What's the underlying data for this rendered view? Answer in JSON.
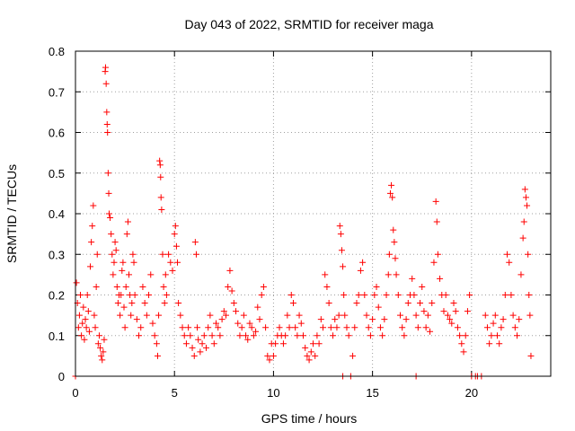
{
  "chart_data": {
    "type": "scatter",
    "title": "Day 043 of 2022, SRMTID for receiver maga",
    "xlabel": "GPS time / hours",
    "ylabel": "SRMTID / TECUs",
    "xlim": [
      0,
      24
    ],
    "ylim": [
      0,
      0.8
    ],
    "xticks": [
      0,
      5,
      10,
      15,
      20
    ],
    "yticks": [
      0,
      0.1,
      0.2,
      0.3,
      0.4,
      0.5,
      0.6,
      0.7,
      0.8
    ],
    "xtick_labels": [
      "0",
      "5",
      "10",
      "15",
      "20"
    ],
    "ytick_labels": [
      "0",
      "0.1",
      "0.2",
      "0.3",
      "0.4",
      "0.5",
      "0.6",
      "0.7",
      "0.8"
    ],
    "grid": true,
    "marker": "+",
    "color": "#ff0000",
    "series": [
      {
        "name": "SRMTID",
        "points": [
          [
            0.0,
            0.0
          ],
          [
            0.05,
            0.23
          ],
          [
            0.1,
            0.18
          ],
          [
            0.15,
            0.12
          ],
          [
            0.2,
            0.15
          ],
          [
            0.25,
            0.2
          ],
          [
            0.3,
            0.1
          ],
          [
            0.35,
            0.13
          ],
          [
            0.4,
            0.17
          ],
          [
            0.45,
            0.09
          ],
          [
            0.5,
            0.14
          ],
          [
            0.55,
            0.12
          ],
          [
            0.6,
            0.2
          ],
          [
            0.65,
            0.16
          ],
          [
            0.7,
            0.11
          ],
          [
            0.75,
            0.27
          ],
          [
            0.8,
            0.33
          ],
          [
            0.85,
            0.37
          ],
          [
            0.9,
            0.42
          ],
          [
            0.95,
            0.15
          ],
          [
            1.0,
            0.12
          ],
          [
            1.05,
            0.22
          ],
          [
            1.1,
            0.3
          ],
          [
            1.15,
            0.08
          ],
          [
            1.2,
            0.1
          ],
          [
            1.25,
            0.07
          ],
          [
            1.3,
            0.05
          ],
          [
            1.35,
            0.04
          ],
          [
            1.4,
            0.06
          ],
          [
            1.45,
            0.09
          ],
          [
            1.5,
            0.75
          ],
          [
            1.52,
            0.76
          ],
          [
            1.55,
            0.72
          ],
          [
            1.58,
            0.65
          ],
          [
            1.6,
            0.62
          ],
          [
            1.62,
            0.6
          ],
          [
            1.65,
            0.5
          ],
          [
            1.68,
            0.45
          ],
          [
            1.7,
            0.4
          ],
          [
            1.75,
            0.39
          ],
          [
            1.8,
            0.35
          ],
          [
            1.85,
            0.3
          ],
          [
            1.9,
            0.25
          ],
          [
            1.95,
            0.28
          ],
          [
            2.0,
            0.33
          ],
          [
            2.05,
            0.31
          ],
          [
            2.1,
            0.22
          ],
          [
            2.15,
            0.18
          ],
          [
            2.2,
            0.2
          ],
          [
            2.25,
            0.15
          ],
          [
            2.3,
            0.2
          ],
          [
            2.35,
            0.26
          ],
          [
            2.4,
            0.28
          ],
          [
            2.45,
            0.17
          ],
          [
            2.5,
            0.12
          ],
          [
            2.55,
            0.22
          ],
          [
            2.6,
            0.35
          ],
          [
            2.65,
            0.38
          ],
          [
            2.7,
            0.25
          ],
          [
            2.75,
            0.2
          ],
          [
            2.8,
            0.15
          ],
          [
            2.85,
            0.18
          ],
          [
            2.9,
            0.3
          ],
          [
            2.95,
            0.28
          ],
          [
            3.0,
            0.2
          ],
          [
            3.1,
            0.14
          ],
          [
            3.2,
            0.1
          ],
          [
            3.3,
            0.12
          ],
          [
            3.4,
            0.22
          ],
          [
            3.5,
            0.18
          ],
          [
            3.6,
            0.15
          ],
          [
            3.7,
            0.2
          ],
          [
            3.8,
            0.25
          ],
          [
            3.9,
            0.13
          ],
          [
            4.0,
            0.1
          ],
          [
            4.1,
            0.08
          ],
          [
            4.15,
            0.05
          ],
          [
            4.2,
            0.15
          ],
          [
            4.25,
            0.53
          ],
          [
            4.28,
            0.52
          ],
          [
            4.3,
            0.49
          ],
          [
            4.32,
            0.44
          ],
          [
            4.35,
            0.41
          ],
          [
            4.4,
            0.3
          ],
          [
            4.45,
            0.22
          ],
          [
            4.5,
            0.18
          ],
          [
            4.55,
            0.25
          ],
          [
            4.6,
            0.2
          ],
          [
            4.7,
            0.3
          ],
          [
            4.8,
            0.28
          ],
          [
            4.9,
            0.26
          ],
          [
            5.0,
            0.35
          ],
          [
            5.05,
            0.37
          ],
          [
            5.1,
            0.32
          ],
          [
            5.15,
            0.28
          ],
          [
            5.2,
            0.18
          ],
          [
            5.3,
            0.15
          ],
          [
            5.4,
            0.12
          ],
          [
            5.5,
            0.1
          ],
          [
            5.6,
            0.08
          ],
          [
            5.7,
            0.12
          ],
          [
            5.8,
            0.1
          ],
          [
            5.9,
            0.07
          ],
          [
            6.0,
            0.05
          ],
          [
            6.05,
            0.33
          ],
          [
            6.1,
            0.3
          ],
          [
            6.15,
            0.12
          ],
          [
            6.2,
            0.09
          ],
          [
            6.3,
            0.06
          ],
          [
            6.4,
            0.08
          ],
          [
            6.5,
            0.1
          ],
          [
            6.6,
            0.07
          ],
          [
            6.7,
            0.12
          ],
          [
            6.8,
            0.15
          ],
          [
            6.9,
            0.1
          ],
          [
            7.0,
            0.08
          ],
          [
            7.1,
            0.13
          ],
          [
            7.2,
            0.12
          ],
          [
            7.3,
            0.1
          ],
          [
            7.4,
            0.14
          ],
          [
            7.5,
            0.16
          ],
          [
            7.6,
            0.15
          ],
          [
            7.7,
            0.22
          ],
          [
            7.8,
            0.26
          ],
          [
            7.9,
            0.21
          ],
          [
            8.0,
            0.18
          ],
          [
            8.1,
            0.16
          ],
          [
            8.2,
            0.13
          ],
          [
            8.3,
            0.1
          ],
          [
            8.4,
            0.12
          ],
          [
            8.5,
            0.15
          ],
          [
            8.6,
            0.1
          ],
          [
            8.7,
            0.09
          ],
          [
            8.8,
            0.13
          ],
          [
            8.9,
            0.12
          ],
          [
            9.0,
            0.1
          ],
          [
            9.1,
            0.11
          ],
          [
            9.2,
            0.17
          ],
          [
            9.3,
            0.14
          ],
          [
            9.4,
            0.2
          ],
          [
            9.5,
            0.22
          ],
          [
            9.6,
            0.12
          ],
          [
            9.7,
            0.05
          ],
          [
            9.8,
            0.04
          ],
          [
            9.9,
            0.08
          ],
          [
            10.0,
            0.05
          ],
          [
            10.1,
            0.08
          ],
          [
            10.2,
            0.1
          ],
          [
            10.3,
            0.12
          ],
          [
            10.4,
            0.1
          ],
          [
            10.5,
            0.08
          ],
          [
            10.6,
            0.1
          ],
          [
            10.7,
            0.15
          ],
          [
            10.8,
            0.12
          ],
          [
            10.9,
            0.2
          ],
          [
            11.0,
            0.18
          ],
          [
            11.1,
            0.12
          ],
          [
            11.2,
            0.1
          ],
          [
            11.3,
            0.15
          ],
          [
            11.4,
            0.13
          ],
          [
            11.5,
            0.1
          ],
          [
            11.6,
            0.07
          ],
          [
            11.7,
            0.05
          ],
          [
            11.8,
            0.04
          ],
          [
            11.9,
            0.06
          ],
          [
            12.0,
            0.08
          ],
          [
            12.1,
            0.05
          ],
          [
            12.2,
            0.1
          ],
          [
            12.3,
            0.08
          ],
          [
            12.4,
            0.14
          ],
          [
            12.5,
            0.12
          ],
          [
            12.6,
            0.25
          ],
          [
            12.7,
            0.22
          ],
          [
            12.8,
            0.18
          ],
          [
            12.9,
            0.12
          ],
          [
            13.0,
            0.1
          ],
          [
            13.1,
            0.14
          ],
          [
            13.2,
            0.12
          ],
          [
            13.3,
            0.15
          ],
          [
            13.35,
            0.37
          ],
          [
            13.4,
            0.35
          ],
          [
            13.45,
            0.31
          ],
          [
            13.5,
            0.27
          ],
          [
            13.55,
            0.2
          ],
          [
            13.6,
            0.15
          ],
          [
            13.7,
            0.12
          ],
          [
            13.8,
            0.1
          ],
          [
            13.9,
            0.0
          ],
          [
            14.0,
            0.05
          ],
          [
            14.1,
            0.12
          ],
          [
            14.2,
            0.18
          ],
          [
            14.3,
            0.2
          ],
          [
            14.4,
            0.26
          ],
          [
            14.5,
            0.28
          ],
          [
            14.6,
            0.2
          ],
          [
            14.7,
            0.15
          ],
          [
            14.8,
            0.12
          ],
          [
            14.9,
            0.1
          ],
          [
            15.0,
            0.14
          ],
          [
            15.1,
            0.2
          ],
          [
            15.2,
            0.22
          ],
          [
            15.3,
            0.17
          ],
          [
            15.4,
            0.12
          ],
          [
            15.5,
            0.1
          ],
          [
            15.6,
            0.14
          ],
          [
            15.7,
            0.2
          ],
          [
            15.8,
            0.25
          ],
          [
            15.85,
            0.3
          ],
          [
            15.9,
            0.45
          ],
          [
            15.95,
            0.47
          ],
          [
            16.0,
            0.44
          ],
          [
            16.05,
            0.36
          ],
          [
            16.1,
            0.33
          ],
          [
            16.15,
            0.29
          ],
          [
            16.2,
            0.25
          ],
          [
            16.3,
            0.2
          ],
          [
            16.4,
            0.15
          ],
          [
            16.5,
            0.12
          ],
          [
            16.6,
            0.1
          ],
          [
            16.7,
            0.14
          ],
          [
            16.8,
            0.18
          ],
          [
            16.9,
            0.2
          ],
          [
            17.0,
            0.24
          ],
          [
            17.1,
            0.2
          ],
          [
            17.2,
            0.15
          ],
          [
            17.3,
            0.12
          ],
          [
            17.4,
            0.18
          ],
          [
            17.5,
            0.22
          ],
          [
            17.6,
            0.16
          ],
          [
            17.7,
            0.12
          ],
          [
            17.8,
            0.15
          ],
          [
            17.9,
            0.11
          ],
          [
            18.0,
            0.18
          ],
          [
            18.1,
            0.28
          ],
          [
            18.2,
            0.43
          ],
          [
            18.25,
            0.38
          ],
          [
            18.3,
            0.3
          ],
          [
            18.4,
            0.24
          ],
          [
            18.5,
            0.2
          ],
          [
            18.6,
            0.16
          ],
          [
            18.7,
            0.2
          ],
          [
            18.8,
            0.15
          ],
          [
            18.9,
            0.14
          ],
          [
            19.0,
            0.13
          ],
          [
            19.1,
            0.18
          ],
          [
            19.2,
            0.16
          ],
          [
            19.3,
            0.12
          ],
          [
            19.4,
            0.1
          ],
          [
            19.5,
            0.08
          ],
          [
            19.6,
            0.06
          ],
          [
            19.7,
            0.1
          ],
          [
            19.8,
            0.16
          ],
          [
            19.9,
            0.2
          ],
          [
            20.0,
            0.0
          ],
          [
            20.2,
            0.0
          ],
          [
            20.5,
            0.0
          ],
          [
            20.7,
            0.15
          ],
          [
            20.8,
            0.12
          ],
          [
            20.9,
            0.08
          ],
          [
            21.0,
            0.1
          ],
          [
            21.1,
            0.13
          ],
          [
            21.2,
            0.15
          ],
          [
            21.3,
            0.1
          ],
          [
            21.4,
            0.08
          ],
          [
            21.5,
            0.12
          ],
          [
            21.6,
            0.14
          ],
          [
            21.7,
            0.2
          ],
          [
            21.8,
            0.3
          ],
          [
            21.9,
            0.28
          ],
          [
            22.0,
            0.2
          ],
          [
            22.1,
            0.15
          ],
          [
            22.2,
            0.12
          ],
          [
            22.3,
            0.1
          ],
          [
            22.4,
            0.14
          ],
          [
            22.5,
            0.25
          ],
          [
            22.6,
            0.34
          ],
          [
            22.65,
            0.38
          ],
          [
            22.7,
            0.46
          ],
          [
            22.75,
            0.44
          ],
          [
            22.8,
            0.42
          ],
          [
            22.85,
            0.3
          ],
          [
            22.9,
            0.2
          ],
          [
            22.95,
            0.15
          ],
          [
            23.0,
            0.05
          ],
          [
            0.0,
            0.0
          ],
          [
            13.5,
            0.0
          ],
          [
            17.2,
            0.0
          ],
          [
            20.3,
            0.0
          ]
        ]
      }
    ]
  }
}
